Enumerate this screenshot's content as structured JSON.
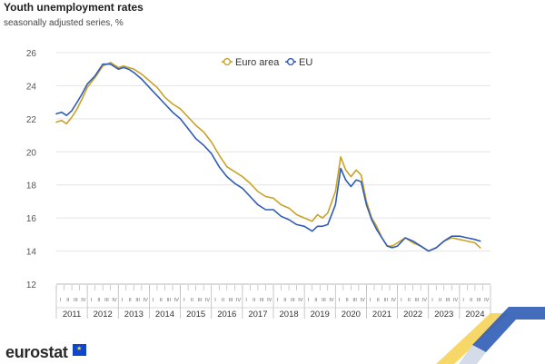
{
  "header": {
    "title": "Youth unemployment rates",
    "subtitle": "seasonally adjusted series, %"
  },
  "brand": {
    "name": "eurostat",
    "flag_icon": "eu-flag-icon"
  },
  "chart_data": {
    "type": "line",
    "title": "Youth unemployment rates",
    "subtitle": "seasonally adjusted series, %",
    "xlabel": "",
    "ylabel": "",
    "ylim": [
      12,
      26
    ],
    "yticks": [
      "12",
      "14",
      "16",
      "18",
      "20",
      "22",
      "24",
      "26"
    ],
    "years": [
      "2011",
      "2012",
      "2013",
      "2014",
      "2015",
      "2016",
      "2017",
      "2018",
      "2019",
      "2020",
      "2021",
      "2022",
      "2023",
      "2024"
    ],
    "quarters": [
      "I",
      "II",
      "III",
      "IV"
    ],
    "grid": true,
    "legend_position": "top-center",
    "series": [
      {
        "name": "Euro area",
        "color": "#c9a227",
        "x": [
          2011.0,
          2011.17,
          2011.33,
          2011.5,
          2011.67,
          2011.83,
          2012.0,
          2012.25,
          2012.5,
          2012.75,
          2013.0,
          2013.17,
          2013.33,
          2013.5,
          2013.75,
          2014.0,
          2014.25,
          2014.5,
          2014.75,
          2015.0,
          2015.25,
          2015.5,
          2015.75,
          2016.0,
          2016.25,
          2016.5,
          2016.75,
          2017.0,
          2017.25,
          2017.5,
          2017.75,
          2018.0,
          2018.25,
          2018.5,
          2018.75,
          2019.0,
          2019.25,
          2019.42,
          2019.58,
          2019.75,
          2020.0,
          2020.17,
          2020.33,
          2020.5,
          2020.67,
          2020.83,
          2021.0,
          2021.17,
          2021.33,
          2021.5,
          2021.67,
          2021.83,
          2022.0,
          2022.25,
          2022.5,
          2022.75,
          2023.0,
          2023.25,
          2023.5,
          2023.75,
          2024.0,
          2024.25,
          2024.5,
          2024.67
        ],
        "y": [
          21.8,
          21.9,
          21.7,
          22.1,
          22.6,
          23.2,
          23.9,
          24.5,
          25.2,
          25.4,
          25.1,
          25.2,
          25.1,
          25.0,
          24.7,
          24.3,
          23.9,
          23.3,
          22.9,
          22.6,
          22.1,
          21.6,
          21.2,
          20.6,
          19.8,
          19.1,
          18.8,
          18.5,
          18.1,
          17.6,
          17.3,
          17.2,
          16.8,
          16.6,
          16.2,
          16.0,
          15.8,
          16.2,
          16.0,
          16.3,
          17.6,
          19.7,
          18.9,
          18.5,
          18.9,
          18.6,
          17.0,
          16.0,
          15.5,
          14.8,
          14.3,
          14.3,
          14.5,
          14.8,
          14.5,
          14.3,
          14.0,
          14.2,
          14.6,
          14.8,
          14.7,
          14.6,
          14.5,
          14.2
        ]
      },
      {
        "name": "EU",
        "color": "#2f5cb5",
        "x": [
          2011.0,
          2011.17,
          2011.33,
          2011.5,
          2011.67,
          2011.83,
          2012.0,
          2012.25,
          2012.5,
          2012.75,
          2013.0,
          2013.17,
          2013.33,
          2013.5,
          2013.75,
          2014.0,
          2014.25,
          2014.5,
          2014.75,
          2015.0,
          2015.25,
          2015.5,
          2015.75,
          2016.0,
          2016.25,
          2016.5,
          2016.75,
          2017.0,
          2017.25,
          2017.5,
          2017.75,
          2018.0,
          2018.25,
          2018.5,
          2018.75,
          2019.0,
          2019.25,
          2019.42,
          2019.58,
          2019.75,
          2020.0,
          2020.17,
          2020.33,
          2020.5,
          2020.67,
          2020.83,
          2021.0,
          2021.17,
          2021.33,
          2021.5,
          2021.67,
          2021.83,
          2022.0,
          2022.25,
          2022.5,
          2022.75,
          2023.0,
          2023.25,
          2023.5,
          2023.75,
          2024.0,
          2024.25,
          2024.5,
          2024.67
        ],
        "y": [
          22.3,
          22.4,
          22.2,
          22.5,
          23.0,
          23.5,
          24.1,
          24.6,
          25.3,
          25.3,
          25.0,
          25.1,
          25.0,
          24.8,
          24.4,
          23.9,
          23.4,
          22.9,
          22.4,
          22.0,
          21.4,
          20.8,
          20.4,
          19.9,
          19.1,
          18.5,
          18.1,
          17.8,
          17.3,
          16.8,
          16.5,
          16.5,
          16.1,
          15.9,
          15.6,
          15.5,
          15.2,
          15.5,
          15.5,
          15.6,
          16.8,
          19.0,
          18.3,
          17.9,
          18.3,
          18.2,
          16.8,
          15.9,
          15.3,
          14.8,
          14.3,
          14.2,
          14.3,
          14.8,
          14.6,
          14.3,
          14.0,
          14.2,
          14.6,
          14.9,
          14.9,
          14.8,
          14.7,
          14.6
        ]
      }
    ]
  }
}
